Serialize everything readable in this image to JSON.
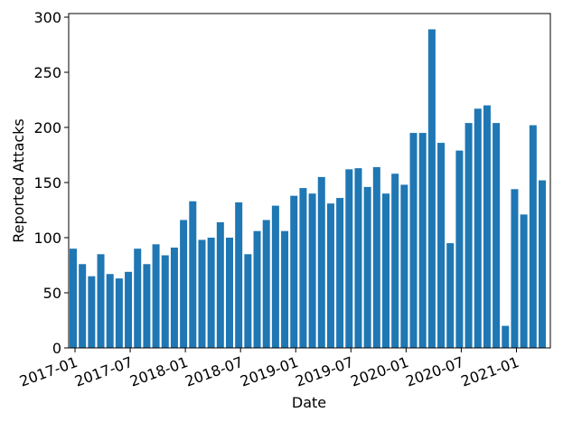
{
  "chart_data": {
    "type": "bar",
    "xlabel": "Date",
    "ylabel": "Reported Attacks",
    "categories": [
      "2017-01",
      "2017-02",
      "2017-03",
      "2017-04",
      "2017-05",
      "2017-06",
      "2017-07",
      "2017-08",
      "2017-09",
      "2017-10",
      "2017-11",
      "2017-12",
      "2018-01",
      "2018-02",
      "2018-03",
      "2018-04",
      "2018-05",
      "2018-06",
      "2018-07",
      "2018-08",
      "2018-09",
      "2018-10",
      "2018-11",
      "2018-12",
      "2019-01",
      "2019-02",
      "2019-03",
      "2019-04",
      "2019-05",
      "2019-06",
      "2019-07",
      "2019-08",
      "2019-09",
      "2019-10",
      "2019-11",
      "2019-12",
      "2020-01",
      "2020-02",
      "2020-03",
      "2020-04",
      "2020-05",
      "2020-06",
      "2020-07",
      "2020-08",
      "2020-09",
      "2020-10",
      "2020-11",
      "2020-12",
      "2021-01",
      "2021-02",
      "2021-03",
      "2021-04"
    ],
    "values": [
      90,
      76,
      65,
      85,
      67,
      63,
      69,
      90,
      76,
      94,
      84,
      91,
      116,
      133,
      98,
      100,
      114,
      100,
      132,
      85,
      106,
      116,
      129,
      106,
      138,
      145,
      140,
      155,
      131,
      136,
      162,
      163,
      146,
      164,
      140,
      158,
      148,
      195,
      195,
      289,
      186,
      95,
      179,
      204,
      217,
      220,
      204,
      20,
      144,
      121,
      202,
      152
    ],
    "color": "#1f77b4",
    "xticks": [
      "2017-01",
      "2017-07",
      "2018-01",
      "2018-07",
      "2019-01",
      "2019-07",
      "2020-01",
      "2020-07",
      "2021-01"
    ],
    "ylim": [
      0,
      300
    ],
    "yticks": [
      0,
      50,
      100,
      150,
      200,
      250,
      300
    ]
  }
}
